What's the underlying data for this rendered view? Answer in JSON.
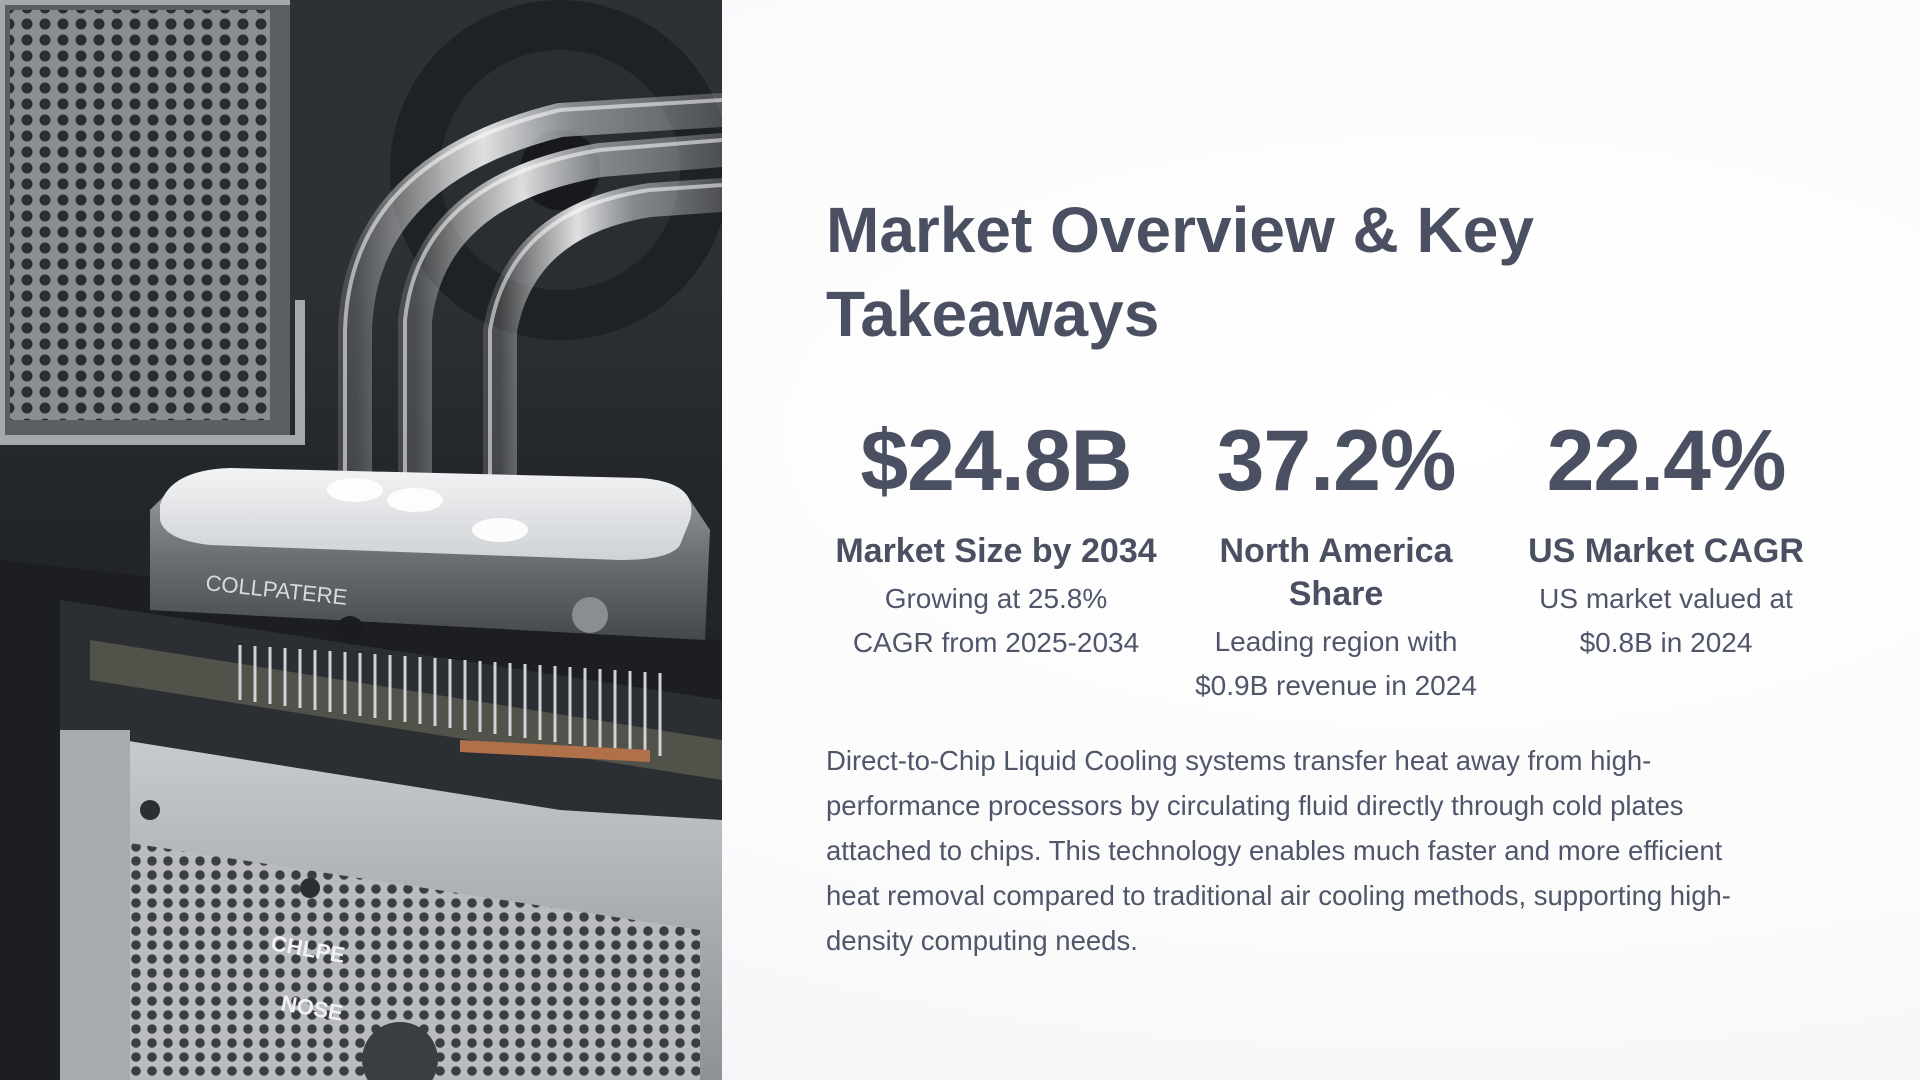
{
  "slide": {
    "title": "Market Overview & Key Takeaways",
    "photo": {
      "subject": "liquid-cooling-hardware-photo",
      "block_brand": "COLLPATERE",
      "psu_labels": [
        "CHLPE",
        "NOSE"
      ]
    },
    "stats": [
      {
        "value": "$24.8B",
        "label": "Market Size by 2034",
        "description": "Growing at 25.8% CAGR from 2025-2034"
      },
      {
        "value": "37.2%",
        "label": "North America Share",
        "description": "Leading region with $0.9B revenue in 2024"
      },
      {
        "value": "22.4%",
        "label": "US Market CAGR",
        "description": "US market valued at $0.8B in 2024"
      }
    ],
    "body": "Direct-to-Chip Liquid Cooling systems transfer heat away from high-performance processors by circulating fluid directly through cold plates attached to chips. This technology enables much faster and more efficient heat removal compared to traditional air cooling methods, supporting high-density computing needs.",
    "colors": {
      "text": "#4a5061",
      "body_text": "#50566a",
      "background": "#ffffff"
    }
  }
}
